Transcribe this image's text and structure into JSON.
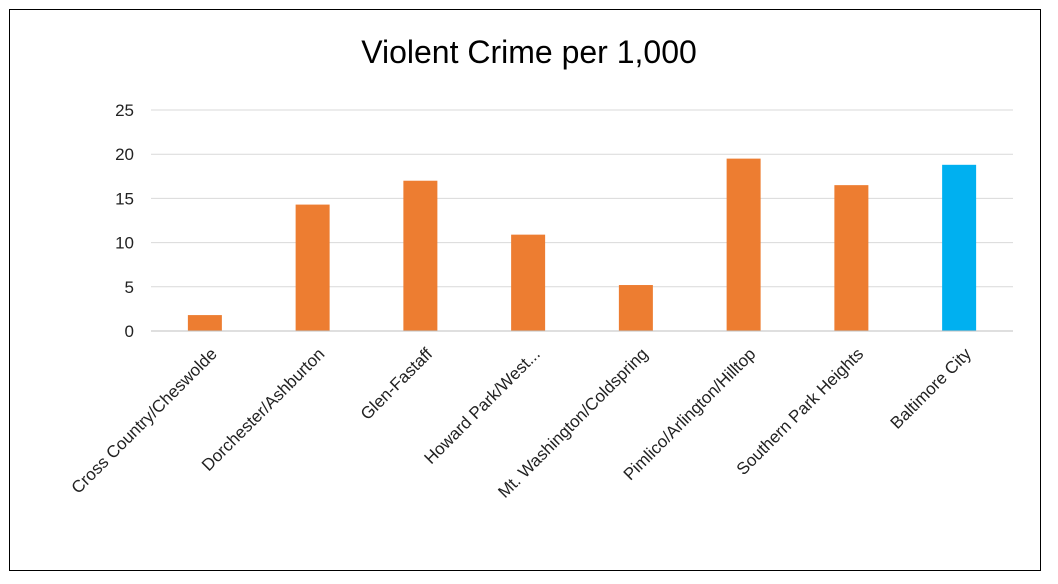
{
  "chart_data": {
    "type": "bar",
    "title": "Violent Crime per 1,000",
    "xlabel": "",
    "ylabel": "",
    "ylim": [
      0,
      25
    ],
    "yticks": [
      0,
      5,
      10,
      15,
      20,
      25
    ],
    "grid": true,
    "legend": "none",
    "categories": [
      "Cross Country/Cheswolde",
      "Dorchester/Ashburton",
      "Glen-Fastaff",
      "Howard Park/West...",
      "Mt. Washington/Coldspring",
      "Pimlico/Arlington/Hilltop",
      "Southern Park Heights",
      "Baltimore City"
    ],
    "values": [
      1.8,
      14.3,
      17.0,
      10.9,
      5.2,
      19.5,
      16.5,
      18.8
    ],
    "colors": [
      "#ED7D31",
      "#ED7D31",
      "#ED7D31",
      "#ED7D31",
      "#ED7D31",
      "#ED7D31",
      "#ED7D31",
      "#00B0F0"
    ],
    "gridline_color": "#D9D9D9",
    "axis_color": "#BFBFBF"
  }
}
